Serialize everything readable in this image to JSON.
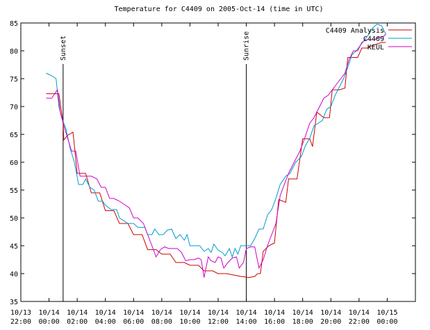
{
  "chart_data": {
    "type": "line",
    "title": "Temperature for C4409 on 2005-Oct-14 (time in UTC)",
    "xlabel": "",
    "ylabel": "",
    "xlim": [
      -2,
      26
    ],
    "ylim": [
      35,
      85
    ],
    "x_ticks": [
      {
        "x": -2,
        "date": "10/13",
        "time": "22:00"
      },
      {
        "x": 0,
        "date": "10/14",
        "time": "00:00"
      },
      {
        "x": 2,
        "date": "10/14",
        "time": "02:00"
      },
      {
        "x": 4,
        "date": "10/14",
        "time": "04:00"
      },
      {
        "x": 6,
        "date": "10/14",
        "time": "06:00"
      },
      {
        "x": 8,
        "date": "10/14",
        "time": "08:00"
      },
      {
        "x": 10,
        "date": "10/14",
        "time": "10:00"
      },
      {
        "x": 12,
        "date": "10/14",
        "time": "12:00"
      },
      {
        "x": 14,
        "date": "10/14",
        "time": "14:00"
      },
      {
        "x": 16,
        "date": "10/14",
        "time": "16:00"
      },
      {
        "x": 18,
        "date": "10/14",
        "time": "18:00"
      },
      {
        "x": 20,
        "date": "10/14",
        "time": "20:00"
      },
      {
        "x": 22,
        "date": "10/14",
        "time": "22:00"
      },
      {
        "x": 24,
        "date": "10/15",
        "time": "00:00"
      }
    ],
    "y_ticks": [
      35,
      40,
      45,
      50,
      55,
      60,
      65,
      70,
      75,
      80,
      85
    ],
    "grid": false,
    "legend_position": "top-right",
    "annotations": [
      {
        "label": "Sunset",
        "x": 1.0
      },
      {
        "label": "Sunrise",
        "x": 14.0
      }
    ],
    "series": [
      {
        "name": "C4409 Analysis",
        "color": "#cc0000",
        "points": [
          [
            -0.2,
            72.3
          ],
          [
            0.7,
            72.3
          ],
          [
            1.0,
            67
          ],
          [
            1.05,
            64
          ],
          [
            1.3,
            64.8
          ],
          [
            1.7,
            65.4
          ],
          [
            2.0,
            58
          ],
          [
            2.6,
            58
          ],
          [
            3.0,
            54.5
          ],
          [
            3.6,
            54.5
          ],
          [
            4.0,
            51.3
          ],
          [
            4.6,
            51.3
          ],
          [
            5.0,
            49
          ],
          [
            5.6,
            49
          ],
          [
            6.0,
            47
          ],
          [
            6.6,
            47
          ],
          [
            7.0,
            44.3
          ],
          [
            7.6,
            44.3
          ],
          [
            8.0,
            43.5
          ],
          [
            8.6,
            43.5
          ],
          [
            9.0,
            42
          ],
          [
            9.6,
            42
          ],
          [
            10.0,
            41.5
          ],
          [
            10.6,
            41.5
          ],
          [
            11.0,
            40.5
          ],
          [
            11.6,
            40.5
          ],
          [
            12.0,
            40
          ],
          [
            12.6,
            40
          ],
          [
            13.0,
            39.8
          ],
          [
            13.6,
            39.5
          ],
          [
            14.2,
            39.3
          ],
          [
            14.6,
            39.5
          ],
          [
            14.8,
            40
          ],
          [
            15.0,
            40
          ],
          [
            15.2,
            44
          ],
          [
            15.6,
            45
          ],
          [
            16.0,
            45.5
          ],
          [
            16.3,
            53.3
          ],
          [
            16.8,
            52.8
          ],
          [
            17.0,
            57
          ],
          [
            17.6,
            57
          ],
          [
            18.0,
            64.2
          ],
          [
            18.5,
            64.2
          ],
          [
            18.7,
            62.8
          ],
          [
            19.0,
            69
          ],
          [
            19.5,
            68
          ],
          [
            19.9,
            68
          ],
          [
            20.1,
            73
          ],
          [
            20.6,
            73
          ],
          [
            21.0,
            73.3
          ],
          [
            21.2,
            78.8
          ],
          [
            21.9,
            78.8
          ],
          [
            22.2,
            80.5
          ],
          [
            22.6,
            80.5
          ],
          [
            23.0,
            81
          ],
          [
            23.6,
            81.5
          ],
          [
            23.9,
            81.5
          ]
        ]
      },
      {
        "name": "C4409",
        "color": "#0099cc",
        "points": [
          [
            -0.2,
            76
          ],
          [
            0.2,
            75.5
          ],
          [
            0.5,
            75
          ],
          [
            0.7,
            70
          ],
          [
            0.9,
            68
          ],
          [
            1.2,
            66
          ],
          [
            1.5,
            62.5
          ],
          [
            1.8,
            60
          ],
          [
            2.1,
            56
          ],
          [
            2.4,
            56
          ],
          [
            2.6,
            57
          ],
          [
            2.9,
            55.5
          ],
          [
            3.2,
            55
          ],
          [
            3.5,
            53
          ],
          [
            3.8,
            53
          ],
          [
            4.0,
            52.3
          ],
          [
            4.4,
            51.5
          ],
          [
            4.8,
            51.5
          ],
          [
            5.0,
            50
          ],
          [
            5.6,
            49
          ],
          [
            6.0,
            49
          ],
          [
            6.3,
            48.3
          ],
          [
            6.8,
            48.3
          ],
          [
            7.0,
            47
          ],
          [
            7.3,
            47
          ],
          [
            7.5,
            48
          ],
          [
            7.8,
            47
          ],
          [
            8.1,
            47
          ],
          [
            8.4,
            47.8
          ],
          [
            8.7,
            48
          ],
          [
            9.0,
            46.3
          ],
          [
            9.3,
            47
          ],
          [
            9.6,
            46
          ],
          [
            9.8,
            47
          ],
          [
            10.0,
            45
          ],
          [
            10.3,
            45
          ],
          [
            10.7,
            45
          ],
          [
            11.0,
            44
          ],
          [
            11.3,
            44.5
          ],
          [
            11.5,
            43.8
          ],
          [
            11.7,
            45.3
          ],
          [
            12.0,
            44.2
          ],
          [
            12.3,
            43.8
          ],
          [
            12.5,
            43.2
          ],
          [
            12.8,
            44.5
          ],
          [
            13.0,
            43
          ],
          [
            13.2,
            44.5
          ],
          [
            13.4,
            43.5
          ],
          [
            13.6,
            45
          ],
          [
            13.8,
            45
          ],
          [
            14.0,
            45
          ],
          [
            14.3,
            45
          ],
          [
            14.6,
            46.3
          ],
          [
            14.9,
            48
          ],
          [
            15.2,
            48
          ],
          [
            15.5,
            50.5
          ],
          [
            15.8,
            51.5
          ],
          [
            16.1,
            53.5
          ],
          [
            16.4,
            56
          ],
          [
            16.8,
            57.5
          ],
          [
            17.1,
            58
          ],
          [
            17.5,
            60
          ],
          [
            17.9,
            61
          ],
          [
            18.2,
            63
          ],
          [
            18.5,
            64.3
          ],
          [
            18.8,
            66.5
          ],
          [
            19.1,
            67
          ],
          [
            19.4,
            67.5
          ],
          [
            19.7,
            69.5
          ],
          [
            20.0,
            70
          ],
          [
            20.3,
            72
          ],
          [
            20.6,
            73.5
          ],
          [
            20.9,
            75
          ],
          [
            21.2,
            77
          ],
          [
            21.5,
            79.3
          ],
          [
            21.8,
            80
          ],
          [
            22.1,
            81
          ],
          [
            22.4,
            82
          ],
          [
            22.7,
            83
          ],
          [
            23.0,
            84.2
          ],
          [
            23.3,
            84.8
          ],
          [
            23.6,
            84.5
          ],
          [
            23.9,
            83
          ]
        ]
      },
      {
        "name": "KEUL",
        "color": "#cc00cc",
        "points": [
          [
            -0.2,
            71.5
          ],
          [
            0.2,
            71.5
          ],
          [
            0.4,
            72.3
          ],
          [
            0.6,
            73
          ],
          [
            0.8,
            69
          ],
          [
            1.0,
            67
          ],
          [
            1.3,
            64.5
          ],
          [
            1.6,
            62
          ],
          [
            1.9,
            62
          ],
          [
            2.2,
            57.5
          ],
          [
            2.5,
            57.5
          ],
          [
            2.8,
            57.5
          ],
          [
            3.0,
            57.5
          ],
          [
            3.4,
            57
          ],
          [
            3.7,
            55.5
          ],
          [
            4.0,
            55.5
          ],
          [
            4.3,
            53.5
          ],
          [
            4.6,
            53.5
          ],
          [
            5.0,
            53
          ],
          [
            5.3,
            52.5
          ],
          [
            5.7,
            51.8
          ],
          [
            6.0,
            50
          ],
          [
            6.3,
            50
          ],
          [
            6.7,
            49
          ],
          [
            7.0,
            47
          ],
          [
            7.3,
            45
          ],
          [
            7.6,
            43
          ],
          [
            7.9,
            44.3
          ],
          [
            8.2,
            44.8
          ],
          [
            8.5,
            44.5
          ],
          [
            8.8,
            44.5
          ],
          [
            9.1,
            44.5
          ],
          [
            9.4,
            43.8
          ],
          [
            9.7,
            42.3
          ],
          [
            10.0,
            42.5
          ],
          [
            10.3,
            42.5
          ],
          [
            10.6,
            42.8
          ],
          [
            10.8,
            42.5
          ],
          [
            11.0,
            39.3
          ],
          [
            11.3,
            43
          ],
          [
            11.5,
            42.3
          ],
          [
            11.8,
            42
          ],
          [
            12.0,
            43
          ],
          [
            12.2,
            42.8
          ],
          [
            12.4,
            41
          ],
          [
            12.7,
            42
          ],
          [
            13.0,
            42.8
          ],
          [
            13.3,
            43
          ],
          [
            13.5,
            41
          ],
          [
            13.8,
            42
          ],
          [
            14.0,
            44.5
          ],
          [
            14.3,
            44.8
          ],
          [
            14.6,
            44.8
          ],
          [
            14.9,
            41
          ],
          [
            15.2,
            42.5
          ],
          [
            15.5,
            45
          ],
          [
            15.8,
            47
          ],
          [
            16.1,
            49
          ],
          [
            16.4,
            54
          ],
          [
            16.7,
            56
          ],
          [
            17.0,
            58
          ],
          [
            17.4,
            60
          ],
          [
            17.8,
            62
          ],
          [
            18.1,
            64
          ],
          [
            18.5,
            67
          ],
          [
            18.8,
            68
          ],
          [
            19.2,
            70
          ],
          [
            19.5,
            71.5
          ],
          [
            19.8,
            72
          ],
          [
            20.1,
            73
          ],
          [
            20.4,
            74
          ],
          [
            20.7,
            75
          ],
          [
            21.0,
            76
          ],
          [
            21.3,
            78.5
          ],
          [
            21.6,
            80
          ],
          [
            21.9,
            80
          ],
          [
            22.2,
            81.5
          ],
          [
            22.5,
            82
          ],
          [
            22.8,
            82
          ],
          [
            23.1,
            82
          ],
          [
            23.4,
            82.5
          ],
          [
            23.7,
            82.5
          ],
          [
            23.9,
            83
          ]
        ]
      }
    ]
  }
}
